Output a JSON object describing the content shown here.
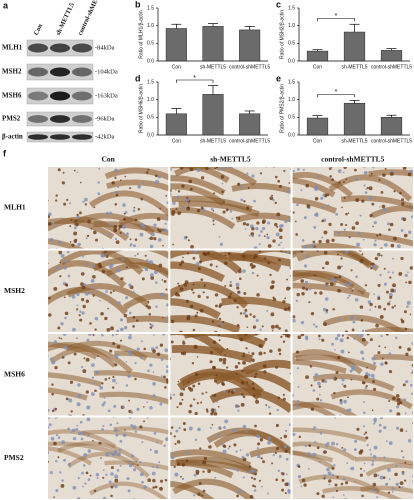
{
  "blot": {
    "label": "a",
    "columns": [
      "Con",
      "sh-METTL5",
      "control-shMETTL5"
    ],
    "rows": [
      {
        "protein": "MLH1",
        "kda": "-84kDa"
      },
      {
        "protein": "MSH2",
        "kda": "-104kDa"
      },
      {
        "protein": "MSH6",
        "kda": "-163kDa"
      },
      {
        "protein": "PMS2",
        "kda": "-96kDa"
      },
      {
        "protein": "β-actin",
        "kda": "-42kDa"
      }
    ]
  },
  "chart_data": [
    {
      "type": "bar",
      "panel": "b",
      "ylabel": "Ratio of MLH1/β-actin",
      "categories": [
        "Con",
        "sh-METTL5",
        "control-shMETTL5"
      ],
      "values": [
        0.92,
        0.98,
        0.88
      ],
      "errors": [
        0.12,
        0.08,
        0.1
      ],
      "color": "#6b6b6b",
      "ylim": [
        0,
        1.5
      ],
      "yticks": [
        {
          "value": 0,
          "label": "0.0"
        },
        0.5,
        {
          "value": 1,
          "label": "1.0"
        },
        1.5
      ]
    },
    {
      "type": "bar",
      "panel": "c",
      "ylabel": "Ratio of MSH2/β-actin",
      "categories": [
        "Con",
        "sh-METTL5",
        "control-shMETTL5"
      ],
      "values": [
        0.28,
        0.82,
        0.3
      ],
      "errors": [
        0.04,
        0.22,
        0.05
      ],
      "color": "#6b6b6b",
      "annotation": "*",
      "ylim": [
        0,
        1.5
      ],
      "yticks": [
        {
          "value": 0,
          "label": "0.0"
        },
        0.5,
        {
          "value": 1,
          "label": "1.0"
        },
        1.5
      ]
    },
    {
      "type": "bar",
      "panel": "d",
      "ylabel": "Ratio of MSH6/β-actin",
      "categories": [
        "Con",
        "sh-METTL5",
        "control-shMETTL5"
      ],
      "values": [
        0.6,
        1.15,
        0.6
      ],
      "errors": [
        0.15,
        0.25,
        0.08
      ],
      "color": "#6b6b6b",
      "annotation": "*",
      "ylim": [
        0,
        1.5
      ],
      "yticks": [
        {
          "value": 0,
          "label": "0.0"
        },
        0.5,
        {
          "value": 1,
          "label": "1.0"
        },
        1.5
      ]
    },
    {
      "type": "bar",
      "panel": "e",
      "ylabel": "Ratio of PMS2/β-actin",
      "categories": [
        "Con",
        "sh-METTL5",
        "control-shMETTL5"
      ],
      "values": [
        0.48,
        0.9,
        0.5
      ],
      "errors": [
        0.07,
        0.08,
        0.06
      ],
      "color": "#6b6b6b",
      "annotation": "*",
      "ylim": [
        0,
        1.5
      ],
      "yticks": [
        {
          "value": 0,
          "label": "0.0"
        },
        0.5,
        {
          "value": 1,
          "label": "1.0"
        },
        1.5
      ]
    }
  ],
  "ihc": {
    "label": "f",
    "columns": [
      "Con",
      "sh-METTL5",
      "control-shMETTL5"
    ],
    "rows": [
      "MLH1",
      "MSH2",
      "MSH6",
      "PMS2"
    ]
  }
}
